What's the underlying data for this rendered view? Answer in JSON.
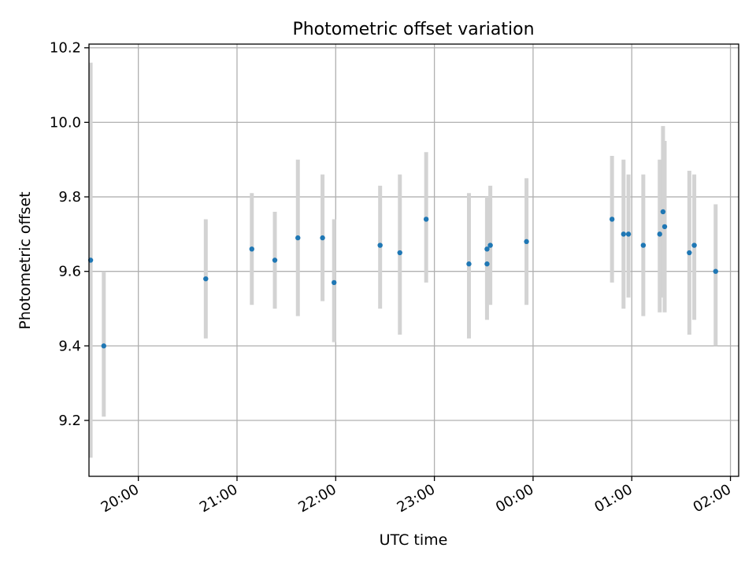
{
  "chart_data": {
    "type": "scatter",
    "title": "Photometric offset variation",
    "xlabel": "UTC time",
    "ylabel": "Photometric offset",
    "x_axis": {
      "type": "time",
      "range": [
        "19:30",
        "02:05"
      ],
      "ticks": [
        "20:00",
        "21:00",
        "22:00",
        "23:00",
        "00:00",
        "01:00",
        "02:00"
      ],
      "tick_label_rotation_deg": 30
    },
    "y_axis": {
      "range": [
        9.05,
        10.21
      ],
      "ticks": [
        9.2,
        9.4,
        9.6,
        9.8,
        10.0,
        10.2
      ],
      "tick_labels": [
        "9.2",
        "9.4",
        "9.6",
        "9.8",
        "10.0",
        "10.2"
      ]
    },
    "grid": true,
    "legend": "none",
    "colors": {
      "points": "#1f77b4",
      "error_bars": "#d3d3d3",
      "grid": "#b0b0b0",
      "frame": "#000000"
    },
    "series": [
      {
        "points": [
          {
            "x": "19:31",
            "y": 9.63,
            "err_low": 9.1,
            "err_high": 10.16
          },
          {
            "x": "19:39",
            "y": 9.4,
            "err_low": 9.21,
            "err_high": 9.6
          },
          {
            "x": "20:41",
            "y": 9.58,
            "err_low": 9.42,
            "err_high": 9.74
          },
          {
            "x": "21:09",
            "y": 9.66,
            "err_low": 9.51,
            "err_high": 9.81
          },
          {
            "x": "21:23",
            "y": 9.63,
            "err_low": 9.5,
            "err_high": 9.76
          },
          {
            "x": "21:37",
            "y": 9.69,
            "err_low": 9.48,
            "err_high": 9.9
          },
          {
            "x": "21:52",
            "y": 9.69,
            "err_low": 9.52,
            "err_high": 9.86
          },
          {
            "x": "21:59",
            "y": 9.57,
            "err_low": 9.41,
            "err_high": 9.74
          },
          {
            "x": "22:27",
            "y": 9.67,
            "err_low": 9.5,
            "err_high": 9.83
          },
          {
            "x": "22:39",
            "y": 9.65,
            "err_low": 9.43,
            "err_high": 9.86
          },
          {
            "x": "22:55",
            "y": 9.74,
            "err_low": 9.57,
            "err_high": 9.92
          },
          {
            "x": "23:21",
            "y": 9.62,
            "err_low": 9.42,
            "err_high": 9.81
          },
          {
            "x": "23:32",
            "y": 9.66,
            "err_low": 9.51,
            "err_high": 9.8
          },
          {
            "x": "23:32",
            "y": 9.62,
            "err_low": 9.47,
            "err_high": 9.76
          },
          {
            "x": "23:34",
            "y": 9.67,
            "err_low": 9.51,
            "err_high": 9.83
          },
          {
            "x": "23:56",
            "y": 9.68,
            "err_low": 9.51,
            "err_high": 9.85
          },
          {
            "x": "00:48",
            "y": 9.74,
            "err_low": 9.57,
            "err_high": 9.91
          },
          {
            "x": "00:55",
            "y": 9.7,
            "err_low": 9.5,
            "err_high": 9.9
          },
          {
            "x": "00:58",
            "y": 9.7,
            "err_low": 9.53,
            "err_high": 9.86
          },
          {
            "x": "01:07",
            "y": 9.67,
            "err_low": 9.48,
            "err_high": 9.86
          },
          {
            "x": "01:17",
            "y": 9.7,
            "err_low": 9.49,
            "err_high": 9.9
          },
          {
            "x": "01:19",
            "y": 9.76,
            "err_low": 9.53,
            "err_high": 9.99
          },
          {
            "x": "01:20",
            "y": 9.72,
            "err_low": 9.49,
            "err_high": 9.95
          },
          {
            "x": "01:35",
            "y": 9.65,
            "err_low": 9.43,
            "err_high": 9.87
          },
          {
            "x": "01:38",
            "y": 9.67,
            "err_low": 9.47,
            "err_high": 9.86
          },
          {
            "x": "01:51",
            "y": 9.6,
            "err_low": 9.4,
            "err_high": 9.78
          }
        ]
      }
    ]
  }
}
